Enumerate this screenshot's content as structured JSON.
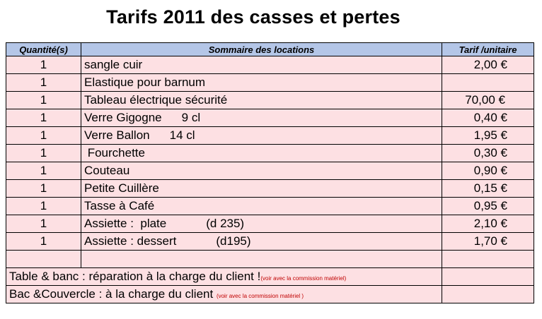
{
  "title": "Tarifs 2011 des casses  et pertes",
  "headers": {
    "qty": "Quantité(s)",
    "summary": "Sommaire des locations",
    "price": "Tarif /unitaire"
  },
  "rows": [
    {
      "qty": "1",
      "item": "sangle cuir",
      "detail": "",
      "price": "2,00 €"
    },
    {
      "qty": "1",
      "item": "Elastique pour barnum",
      "detail": "",
      "price": ""
    },
    {
      "qty": "1",
      "item": "Tableau électrique  sécurité",
      "detail": "",
      "price": "70,00 €"
    },
    {
      "qty": "1",
      "item": "Verre Gigogne",
      "detail": "9 cl",
      "price": "0,40 €"
    },
    {
      "qty": "1",
      "item": "Verre  Ballon",
      "detail": "14 cl",
      "price": "1,95 €"
    },
    {
      "qty": "1",
      "item": " Fourchette",
      "detail": "",
      "price": "0,30 €"
    },
    {
      "qty": "1",
      "item": "Couteau",
      "detail": "",
      "price": "0,90 €"
    },
    {
      "qty": "1",
      "item": "Petite Cuillère",
      "detail": "",
      "price": "0,15 €"
    },
    {
      "qty": "1",
      "item": "Tasse à Café",
      "detail": "",
      "price": "0,95 €"
    },
    {
      "qty": "1",
      "item": "Assiette :  plate",
      "detail": "(d 235)",
      "price": "2,10 €"
    },
    {
      "qty": "1",
      "item": "Assiette : dessert",
      "detail": "(d195)",
      "price": "1,70 €"
    }
  ],
  "notes": [
    {
      "text": "Table & banc : réparation à la charge du client !",
      "note": "(voir avec la commission  matériel)"
    },
    {
      "text": "Bac &Couvercle : à la charge du client ",
      "note": "(voir avec la commission matériel )"
    }
  ]
}
